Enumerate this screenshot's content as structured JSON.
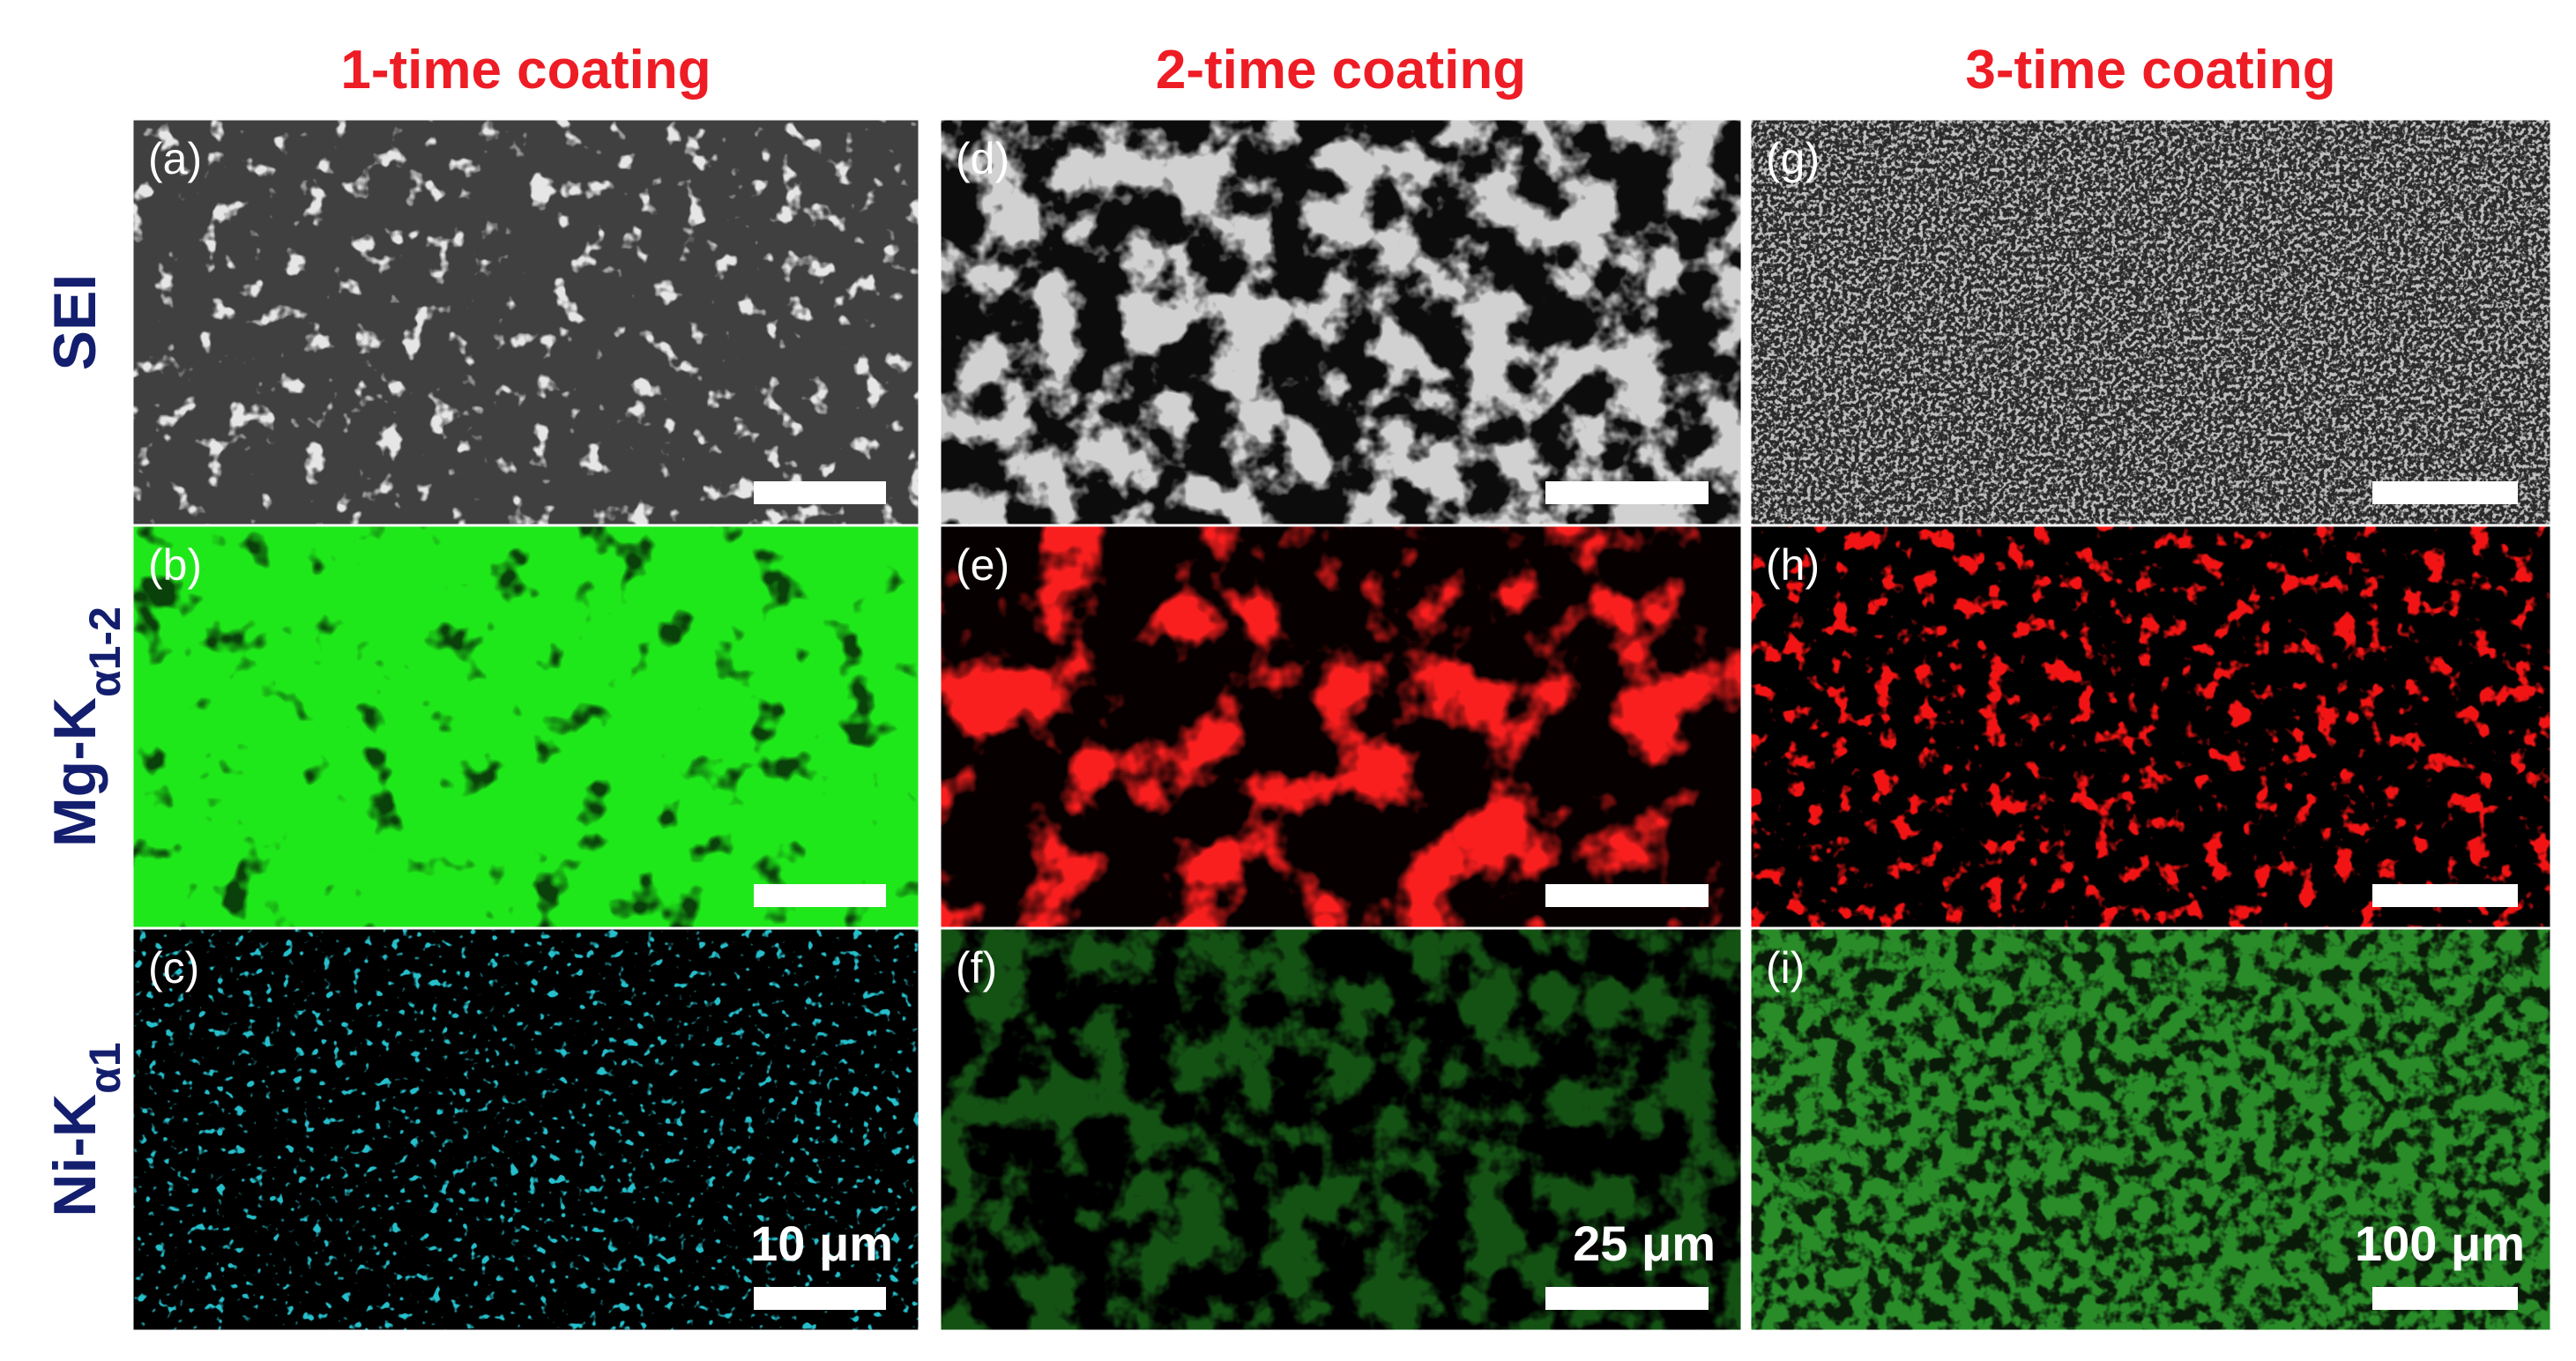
{
  "columns": [
    {
      "title": "1-time coating",
      "scale_bar": "10 μm"
    },
    {
      "title": "2-time coating",
      "scale_bar": "25 μm"
    },
    {
      "title": "3-time coating",
      "scale_bar": "100 μm"
    }
  ],
  "rows": [
    {
      "label": "SEI"
    },
    {
      "label": "Mg-K",
      "subscript": "α1-2"
    },
    {
      "label": "Ni-K",
      "subscript": "α1"
    }
  ],
  "panels": [
    [
      "(a)",
      "(b)",
      "(c)"
    ],
    [
      "(d)",
      "(e)",
      "(f)"
    ],
    [
      "(g)",
      "(h)",
      "(i)"
    ]
  ]
}
